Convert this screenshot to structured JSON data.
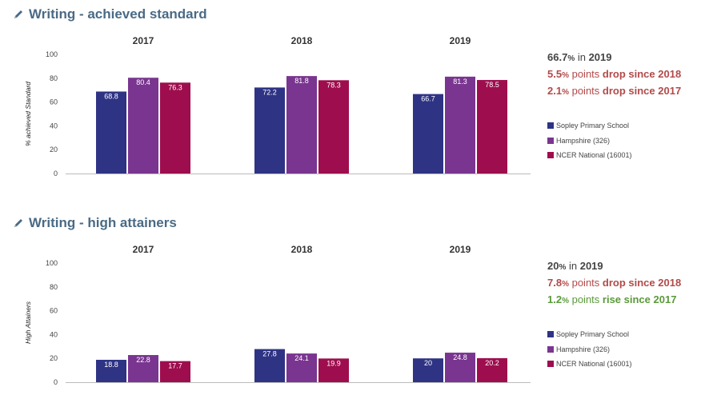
{
  "colors": {
    "school": "#2e3384",
    "hampshire": "#7a3590",
    "national": "#9e0e4e",
    "title": "#4a6a85",
    "neutral": "#444444",
    "drop": "#b24a4a",
    "rise": "#5a9a3a"
  },
  "icons": {
    "title_icon": "pencil-icon"
  },
  "legend": [
    "Sopley Primary School",
    "Hampshire (326)",
    "NCER National (16001)"
  ],
  "sections": [
    {
      "title": "Writing - achieved standard",
      "summary": [
        {
          "value": "66.7",
          "unit": "%",
          "text": " in ",
          "tail": "2019",
          "tone": "neutral"
        },
        {
          "value": "5.5",
          "unit": "%",
          "text": " points ",
          "tail": "drop since 2018",
          "tone": "drop"
        },
        {
          "value": "2.1",
          "unit": "%",
          "text": " points ",
          "tail": "drop since 2017",
          "tone": "drop"
        }
      ]
    },
    {
      "title": "Writing - high attainers",
      "summary": [
        {
          "value": "20",
          "unit": "%",
          "text": " in ",
          "tail": "2019",
          "tone": "neutral"
        },
        {
          "value": "7.8",
          "unit": "%",
          "text": " points ",
          "tail": "drop since 2018",
          "tone": "drop"
        },
        {
          "value": "1.2",
          "unit": "%",
          "text": " points ",
          "tail": "rise since 2017",
          "tone": "rise"
        }
      ]
    }
  ],
  "chart_data": [
    {
      "type": "bar",
      "categories": [
        "2017",
        "2018",
        "2019"
      ],
      "ylabel": "% achieved Standard",
      "ylim": [
        0,
        100
      ],
      "yticks": [
        0,
        20,
        40,
        60,
        80,
        100
      ],
      "series": [
        {
          "name": "Sopley Primary School",
          "values": [
            68.8,
            72.2,
            66.7
          ]
        },
        {
          "name": "Hampshire (326)",
          "values": [
            80.4,
            81.8,
            81.3
          ]
        },
        {
          "name": "NCER National (16001)",
          "values": [
            76.3,
            78.3,
            78.5
          ]
        }
      ]
    },
    {
      "type": "bar",
      "categories": [
        "2017",
        "2018",
        "2019"
      ],
      "ylabel": "High Attainers",
      "ylim": [
        0,
        100
      ],
      "yticks": [
        0,
        20,
        40,
        60,
        80,
        100
      ],
      "series": [
        {
          "name": "Sopley Primary School",
          "values": [
            18.8,
            27.8,
            20
          ]
        },
        {
          "name": "Hampshire (326)",
          "values": [
            22.8,
            24.1,
            24.8
          ]
        },
        {
          "name": "NCER National (16001)",
          "values": [
            17.7,
            19.9,
            20.2
          ]
        }
      ]
    }
  ]
}
